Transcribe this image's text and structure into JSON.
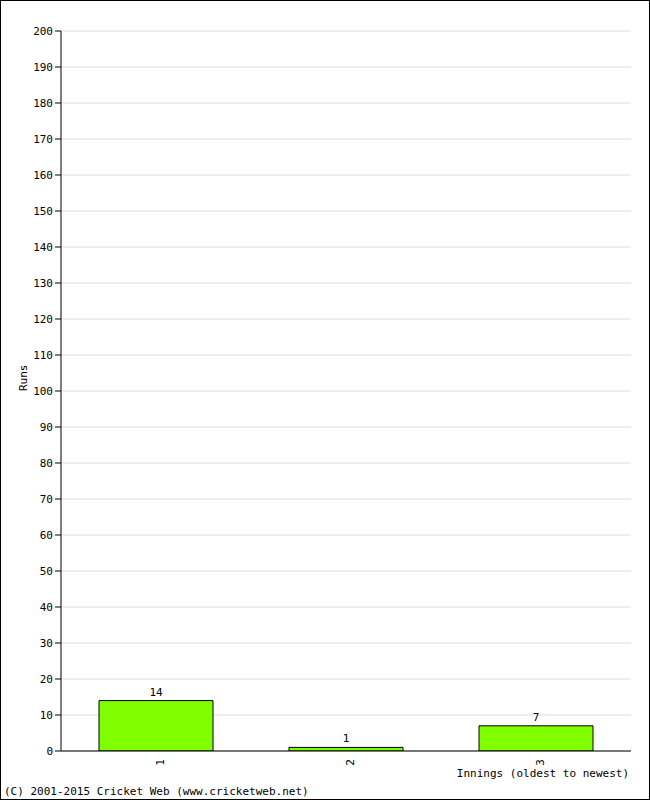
{
  "chart_data": {
    "type": "bar",
    "categories": [
      "1",
      "2",
      "3"
    ],
    "values": [
      14,
      1,
      7
    ],
    "color": "#80ff00",
    "ylim": [
      0,
      200
    ],
    "yticks": [
      0,
      10,
      20,
      30,
      40,
      50,
      60,
      70,
      80,
      90,
      100,
      110,
      120,
      130,
      140,
      150,
      160,
      170,
      180,
      190,
      200
    ],
    "grid": true,
    "data_labels": true,
    "ylabel": "Runs",
    "xlabel": "Innings (oldest to newest)",
    "annotations": [
      "(C) 2001-2015 Cricket Web (www.cricketweb.net)"
    ]
  }
}
